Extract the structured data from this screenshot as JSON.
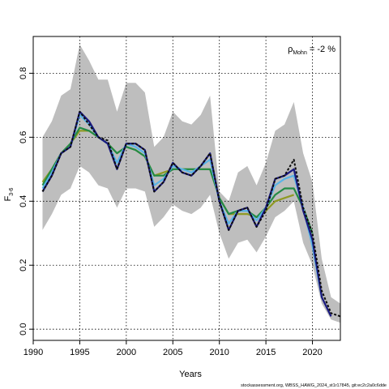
{
  "chart_data": {
    "type": "line",
    "xlabel": "Years",
    "ylabel_main": "F",
    "ylabel_sub": "3-6",
    "xlim": [
      1990,
      2023
    ],
    "ylim": [
      -0.035,
      0.915
    ],
    "x_ticks": [
      1990,
      1995,
      2000,
      2005,
      2010,
      2015,
      2020
    ],
    "y_ticks": [
      0.0,
      0.2,
      0.4,
      0.6,
      0.8
    ],
    "y_tick_labels": [
      "0.0",
      "0.2",
      "0.4",
      "0.6",
      "0.8"
    ],
    "grid": true,
    "annotation": {
      "rho_symbol": "ρ",
      "rho_sub": "Mohn",
      "rho_value": " = -2 %"
    },
    "footer": "stockassessment.org, WBSS_HAWG_2024_st1r17845, git:ec2c2a0c6dde",
    "confidence_band": {
      "x": [
        1991,
        1992,
        1993,
        1994,
        1995,
        1996,
        1997,
        1998,
        1999,
        2000,
        2001,
        2002,
        2003,
        2004,
        2005,
        2006,
        2007,
        2008,
        2009,
        2010,
        2011,
        2012,
        2013,
        2014,
        2015,
        2016,
        2017,
        2018,
        2019,
        2020,
        2021,
        2022,
        2023
      ],
      "upper": [
        0.6,
        0.65,
        0.73,
        0.75,
        0.89,
        0.84,
        0.78,
        0.78,
        0.68,
        0.77,
        0.77,
        0.74,
        0.57,
        0.6,
        0.68,
        0.65,
        0.64,
        0.67,
        0.73,
        0.43,
        0.4,
        0.49,
        0.51,
        0.45,
        0.52,
        0.62,
        0.64,
        0.71,
        0.55,
        0.46,
        0.22,
        0.1,
        0.08
      ],
      "lower": [
        0.31,
        0.36,
        0.42,
        0.44,
        0.51,
        0.49,
        0.45,
        0.44,
        0.38,
        0.44,
        0.44,
        0.43,
        0.32,
        0.35,
        0.39,
        0.37,
        0.36,
        0.38,
        0.42,
        0.3,
        0.22,
        0.27,
        0.28,
        0.24,
        0.29,
        0.35,
        0.37,
        0.4,
        0.27,
        0.2,
        0.08,
        0.03,
        0.02
      ]
    },
    "series": [
      {
        "color": "#0d0d0d",
        "dashed": true,
        "x": [
          1991,
          1992,
          1993,
          1994,
          1995,
          1996,
          1997,
          1998,
          1999,
          2000,
          2001,
          2002,
          2003,
          2004,
          2005,
          2006,
          2007,
          2008,
          2009,
          2010,
          2011,
          2012,
          2013,
          2014,
          2015,
          2016,
          2017,
          2018,
          2019,
          2020,
          2021,
          2022,
          2023
        ],
        "values": [
          0.43,
          0.48,
          0.55,
          0.57,
          0.68,
          0.64,
          0.6,
          0.59,
          0.5,
          0.58,
          0.58,
          0.56,
          0.43,
          0.46,
          0.52,
          0.49,
          0.48,
          0.51,
          0.55,
          0.4,
          0.31,
          0.37,
          0.38,
          0.32,
          0.37,
          0.47,
          0.48,
          0.53,
          0.38,
          0.3,
          0.12,
          0.05,
          0.04
        ]
      },
      {
        "color": "#1a1a80",
        "dashed": false,
        "x": [
          1991,
          1992,
          1993,
          1994,
          1995,
          1996,
          1997,
          1998,
          1999,
          2000,
          2001,
          2002,
          2003,
          2004,
          2005,
          2006,
          2007,
          2008,
          2009,
          2010,
          2011,
          2012,
          2013,
          2014,
          2015,
          2016,
          2017,
          2018,
          2019,
          2020,
          2021,
          2022
        ],
        "values": [
          0.43,
          0.48,
          0.55,
          0.57,
          0.68,
          0.65,
          0.6,
          0.58,
          0.5,
          0.58,
          0.58,
          0.56,
          0.43,
          0.46,
          0.52,
          0.49,
          0.48,
          0.51,
          0.55,
          0.4,
          0.31,
          0.37,
          0.38,
          0.32,
          0.38,
          0.47,
          0.48,
          0.5,
          0.37,
          0.28,
          0.1,
          0.04
        ]
      },
      {
        "color": "#5ab4e6",
        "dashed": false,
        "x": [
          1991,
          1992,
          1993,
          1994,
          1995,
          1996,
          1997,
          1998,
          1999,
          2000,
          2001,
          2002,
          2003,
          2004,
          2005,
          2006,
          2007,
          2008,
          2009,
          2010,
          2011,
          2012,
          2013,
          2014,
          2015,
          2016,
          2017,
          2018,
          2019,
          2020,
          2021
        ],
        "values": [
          0.44,
          0.49,
          0.55,
          0.57,
          0.67,
          0.64,
          0.6,
          0.58,
          0.52,
          0.58,
          0.57,
          0.55,
          0.45,
          0.47,
          0.51,
          0.5,
          0.49,
          0.51,
          0.53,
          0.4,
          0.33,
          0.37,
          0.37,
          0.34,
          0.38,
          0.45,
          0.47,
          0.48,
          0.38,
          0.26,
          0.1
        ]
      },
      {
        "color": "#238b45",
        "dashed": false,
        "x": [
          1991,
          1992,
          1993,
          1994,
          1995,
          1996,
          1997,
          1998,
          1999,
          2000,
          2001,
          2002,
          2003,
          2004,
          2005,
          2006,
          2007,
          2008,
          2009,
          2010,
          2011,
          2012,
          2013,
          2014,
          2015,
          2016,
          2017,
          2018,
          2019,
          2020
        ],
        "values": [
          0.45,
          0.5,
          0.55,
          0.58,
          0.63,
          0.62,
          0.6,
          0.58,
          0.55,
          0.57,
          0.56,
          0.54,
          0.48,
          0.48,
          0.5,
          0.5,
          0.5,
          0.5,
          0.5,
          0.41,
          0.36,
          0.37,
          0.37,
          0.35,
          0.38,
          0.42,
          0.44,
          0.44,
          0.38,
          0.3
        ]
      },
      {
        "color": "#8f9a24",
        "dashed": false,
        "x": [
          1991,
          1992,
          1993,
          1994,
          1995,
          1996,
          1997,
          1998,
          1999,
          2000,
          2001,
          2002,
          2003,
          2004,
          2005,
          2006,
          2007,
          2008,
          2009,
          2010,
          2011,
          2012,
          2013,
          2014,
          2015,
          2016,
          2017,
          2018
        ],
        "values": [
          0.46,
          0.5,
          0.55,
          0.58,
          0.62,
          0.62,
          0.6,
          0.58,
          0.55,
          0.57,
          0.56,
          0.54,
          0.48,
          0.49,
          0.5,
          0.5,
          0.5,
          0.5,
          0.5,
          0.41,
          0.36,
          0.36,
          0.36,
          0.35,
          0.37,
          0.4,
          0.41,
          0.42
        ]
      }
    ]
  }
}
